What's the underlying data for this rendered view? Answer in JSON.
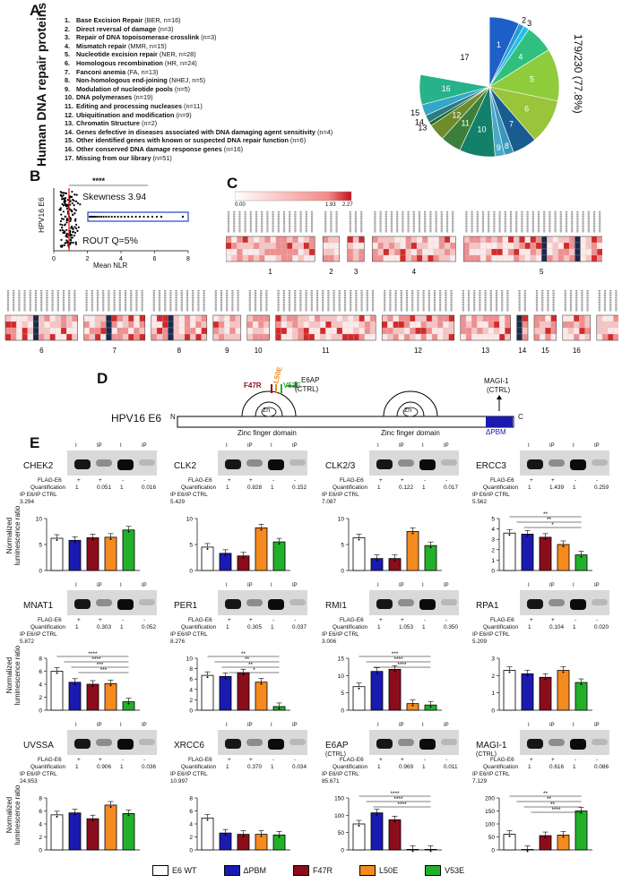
{
  "panels": {
    "a": "A",
    "b": "B",
    "c": "C",
    "d": "D",
    "e": "E"
  },
  "panel_a": {
    "side_title": "Human DNA repair proteins",
    "categories": [
      {
        "num": "1.",
        "name": "Base Excision Repair",
        "extra": " (BER, n=16)"
      },
      {
        "num": "2.",
        "name": "Direct reversal of damage",
        "extra": " (n=3)"
      },
      {
        "num": "3.",
        "name": "Repair of DNA topoisomerase crosslink",
        "extra": " (n=3)"
      },
      {
        "num": "4.",
        "name": "Mismatch repair",
        "extra": " (MMR, n=15)"
      },
      {
        "num": "5.",
        "name": "Nucleotide excision repair",
        "extra": " (NER, n=28)"
      },
      {
        "num": "6.",
        "name": "Homologous recombination",
        "extra": " (HR, n=24)"
      },
      {
        "num": "7.",
        "name": "Fanconi anemia",
        "extra": " (FA, n=13)"
      },
      {
        "num": "8.",
        "name": "Non-homologous end-joining",
        "extra": " (NHEJ, n=5)"
      },
      {
        "num": "9.",
        "name": "Modulation of nucleotide pools",
        "extra": " (n=5)"
      },
      {
        "num": "10.",
        "name": "DNA polymerases",
        "extra": " (n=19)"
      },
      {
        "num": "11.",
        "name": "Editing and processing nucleases",
        "extra": " (n=11)"
      },
      {
        "num": "12.",
        "name": "Ubiquitination and modification",
        "extra": " (n=9)"
      },
      {
        "num": "13.",
        "name": "Chromatin Structure",
        "extra": " (n=2)"
      },
      {
        "num": "14.",
        "name": "Genes defective in diseases associated with DNA damaging agent sensitivity",
        "extra": " (n=4)"
      },
      {
        "num": "15.",
        "name": "Other identified genes with known or suspected DNA repair function",
        "extra": " (n=6)"
      },
      {
        "num": "16.",
        "name": "Other conserved DNA damage response genes",
        "extra": " (n=16)"
      },
      {
        "num": "17.",
        "name": "Missing from our library",
        "extra": " (n=51)"
      }
    ],
    "pie_label": "179/230 (77.8%)",
    "slice_values": [
      16,
      3,
      3,
      15,
      28,
      24,
      13,
      5,
      5,
      19,
      11,
      9,
      2,
      4,
      6,
      16,
      51
    ],
    "slice_labels": [
      "1",
      "2",
      "3",
      "4",
      "5",
      "6",
      "7",
      "8",
      "9",
      "10",
      "11",
      "12",
      "13",
      "14",
      "15",
      "16",
      "17"
    ],
    "slice_colors": [
      "#1f5fc8",
      "#2a9ad6",
      "#25c0e6",
      "#2fc07f",
      "#8fcc3c",
      "#9ac43a",
      "#1b5c90",
      "#3b97b9",
      "#4ba8c8",
      "#13806a",
      "#3d7f3a",
      "#6e8c2a",
      "#1f6a2f",
      "#2b7a84",
      "#33a6c9",
      "#27b389",
      "#ffffff"
    ]
  },
  "panel_b": {
    "ylabel": "HPV16 E6",
    "xlabel": "Mean NLR",
    "skewness": "Skewness 3.94",
    "rout": "ROUT Q=5%",
    "signif": "****",
    "xticks": [
      "0",
      "2",
      "4",
      "6",
      "8"
    ]
  },
  "panel_c": {
    "scale_min": "0.00",
    "scale_mid": "1.93",
    "scale_max": "2.27",
    "group_labels_top": [
      "1",
      "2",
      "3",
      "4",
      "5"
    ],
    "group_labels_bottom": [
      "6",
      "7",
      "8",
      "9",
      "10",
      "11",
      "12",
      "13",
      "14",
      "15",
      "16"
    ]
  },
  "panel_d": {
    "protein": "HPV16 E6",
    "n": "N",
    "c": "C",
    "zf1": "Zinc finger domain",
    "zf2": "Zinc finger domain",
    "zn": "Zn",
    "f47r": "F47R",
    "l50e": "L50E",
    "v53e": "V53E",
    "e6ap": "E6AP",
    "e6ap_ctrl": "(CTRL)",
    "magi": "MAGI-1",
    "magi_ctrl": "(CTRL)",
    "dpbm": "ΔPBM"
  },
  "panel_e": {
    "ylabel": "Normalized luminescence ratio",
    "lane_I": "I",
    "lane_IP": "IP",
    "flag_label": "FLAG-E6",
    "quant_label": "Quantification",
    "ipctrl_label": "IP E6/IP CTRL",
    "legend": [
      {
        "name": "E6 WT",
        "color": "#ffffff"
      },
      {
        "name": "ΔPBM",
        "color": "#1a1ab0"
      },
      {
        "name": "F47R",
        "color": "#8b0d1a"
      },
      {
        "name": "L50E",
        "color": "#f58a1f"
      },
      {
        "name": "V53E",
        "color": "#22b02a"
      }
    ],
    "blots": [
      {
        "name": "CHEK2",
        "sub": "",
        "q": [
          "1",
          "0.051",
          "1",
          "0.016"
        ],
        "ratio": "3.294"
      },
      {
        "name": "CLK2",
        "sub": "",
        "q": [
          "1",
          "0.828",
          "1",
          "0.152"
        ],
        "ratio": "5.429"
      },
      {
        "name": "CLK2/3",
        "sub": "",
        "q": [
          "1",
          "0.122",
          "1",
          "0.017"
        ],
        "ratio": "7.087"
      },
      {
        "name": "ERCC3",
        "sub": "",
        "q": [
          "1",
          "1.439",
          "1",
          "0.259"
        ],
        "ratio": "5.562"
      },
      {
        "name": "MNAT1",
        "sub": "",
        "q": [
          "1",
          "0.303",
          "1",
          "0.052"
        ],
        "ratio": "5.872"
      },
      {
        "name": "PER1",
        "sub": "",
        "q": [
          "1",
          "0.305",
          "1",
          "0.037"
        ],
        "ratio": "8.276"
      },
      {
        "name": "RMI1",
        "sub": "",
        "q": [
          "1",
          "1.053",
          "1",
          "0.350"
        ],
        "ratio": "3.006"
      },
      {
        "name": "RPA1",
        "sub": "",
        "q": [
          "1",
          "0.104",
          "1",
          "0.020"
        ],
        "ratio": "5.209"
      },
      {
        "name": "UVSSA",
        "sub": "",
        "q": [
          "1",
          "0.906",
          "1",
          "0.036"
        ],
        "ratio": "24.953"
      },
      {
        "name": "XRCC6",
        "sub": "",
        "q": [
          "1",
          "0.370",
          "1",
          "0.034"
        ],
        "ratio": "10.997"
      },
      {
        "name": "E6AP",
        "sub": "(CTRL)",
        "q": [
          "1",
          "0.969",
          "1",
          "0.011"
        ],
        "ratio": "85.671"
      },
      {
        "name": "MAGI-1",
        "sub": "(CTRL)",
        "q": [
          "1",
          "0.616",
          "1",
          "0.086"
        ],
        "ratio": "7.129"
      }
    ]
  },
  "chart_data": [
    {
      "type": "bar",
      "categories": [
        "E6 WT",
        "ΔPBM",
        "F47R",
        "L50E",
        "V53E"
      ],
      "target": "CHEK2",
      "ylim": [
        0,
        10
      ],
      "yticks": [
        0,
        5,
        10
      ],
      "values": [
        6.2,
        5.8,
        6.3,
        6.4,
        7.8
      ],
      "signif": []
    },
    {
      "type": "bar",
      "categories": [
        "E6 WT",
        "ΔPBM",
        "F47R",
        "L50E",
        "V53E"
      ],
      "target": "CLK2",
      "ylim": [
        0,
        10
      ],
      "yticks": [
        0,
        5,
        10
      ],
      "values": [
        4.5,
        3.3,
        2.8,
        8.2,
        5.5
      ],
      "signif": []
    },
    {
      "type": "bar",
      "categories": [
        "E6 WT",
        "ΔPBM",
        "F47R",
        "L50E",
        "V53E"
      ],
      "target": "CLK2/3",
      "ylim": [
        0,
        10
      ],
      "yticks": [
        0,
        5,
        10
      ],
      "values": [
        6.3,
        2.3,
        2.3,
        7.5,
        4.8
      ],
      "signif": []
    },
    {
      "type": "bar",
      "categories": [
        "E6 WT",
        "ΔPBM",
        "F47R",
        "L50E",
        "V53E"
      ],
      "target": "ERCC3",
      "ylim": [
        0,
        5
      ],
      "yticks": [
        0,
        1,
        2,
        3,
        4,
        5
      ],
      "values": [
        3.6,
        3.5,
        3.2,
        2.5,
        1.5
      ],
      "signif": [
        "**",
        "**",
        "*"
      ]
    },
    {
      "type": "bar",
      "categories": [
        "E6 WT",
        "ΔPBM",
        "F47R",
        "L50E",
        "V53E"
      ],
      "target": "MNAT1",
      "ylim": [
        0,
        8
      ],
      "yticks": [
        0,
        2,
        4,
        6,
        8
      ],
      "values": [
        6.0,
        4.3,
        4.0,
        4.1,
        1.3
      ],
      "signif": [
        "****",
        "****",
        "***",
        "***"
      ]
    },
    {
      "type": "bar",
      "categories": [
        "E6 WT",
        "ΔPBM",
        "F47R",
        "L50E",
        "V53E"
      ],
      "target": "PER1",
      "ylim": [
        0,
        10
      ],
      "yticks": [
        0,
        2,
        4,
        6,
        8,
        10
      ],
      "values": [
        6.7,
        6.5,
        7.2,
        5.4,
        0.7
      ],
      "signif": [
        "**",
        "**",
        "**",
        "*"
      ]
    },
    {
      "type": "bar",
      "categories": [
        "E6 WT",
        "ΔPBM",
        "F47R",
        "L50E",
        "V53E"
      ],
      "target": "RMI1",
      "ylim": [
        0,
        15
      ],
      "yticks": [
        0,
        5,
        10,
        15
      ],
      "values": [
        6.8,
        11.2,
        11.8,
        1.9,
        1.5
      ],
      "signif": [
        "***",
        "****",
        "****"
      ]
    },
    {
      "type": "bar",
      "categories": [
        "E6 WT",
        "ΔPBM",
        "F47R",
        "L50E",
        "V53E"
      ],
      "target": "RPA1",
      "ylim": [
        0,
        3
      ],
      "yticks": [
        0,
        1,
        2,
        3
      ],
      "values": [
        2.3,
        2.1,
        1.9,
        2.3,
        1.6
      ],
      "signif": []
    },
    {
      "type": "bar",
      "categories": [
        "E6 WT",
        "ΔPBM",
        "F47R",
        "L50E",
        "V53E"
      ],
      "target": "UVSSA",
      "ylim": [
        0,
        8
      ],
      "yticks": [
        0,
        2,
        4,
        6,
        8
      ],
      "values": [
        5.4,
        5.7,
        4.8,
        6.9,
        5.6
      ],
      "signif": []
    },
    {
      "type": "bar",
      "categories": [
        "E6 WT",
        "ΔPBM",
        "F47R",
        "L50E",
        "V53E"
      ],
      "target": "XRCC6",
      "ylim": [
        0,
        8
      ],
      "yticks": [
        0,
        2,
        4,
        6,
        8
      ],
      "values": [
        4.9,
        2.6,
        2.4,
        2.4,
        2.3
      ],
      "signif": []
    },
    {
      "type": "bar",
      "categories": [
        "E6 WT",
        "ΔPBM",
        "F47R",
        "L50E",
        "V53E"
      ],
      "target": "E6AP (CTRL)",
      "ylim": [
        0,
        150
      ],
      "yticks": [
        0,
        50,
        100,
        150
      ],
      "values": [
        75,
        107,
        87,
        1.5,
        1.5
      ],
      "signif": [
        "****",
        "****",
        "****"
      ]
    },
    {
      "type": "bar",
      "categories": [
        "E6 WT",
        "ΔPBM",
        "F47R",
        "L50E",
        "V53E"
      ],
      "target": "MAGI-1 (CTRL)",
      "ylim": [
        0,
        200
      ],
      "yticks": [
        0,
        50,
        100,
        150,
        200
      ],
      "values": [
        60,
        0,
        55,
        57,
        150
      ],
      "signif": [
        "**",
        "**",
        "**",
        "****"
      ]
    }
  ]
}
